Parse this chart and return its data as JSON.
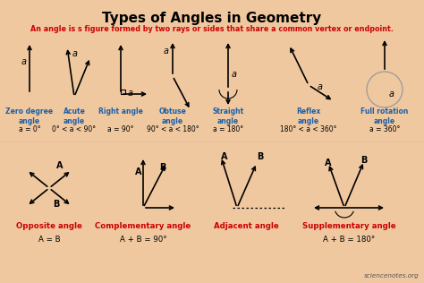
{
  "title": "Types of Angles in Geometry",
  "subtitle": "An angle is s figure formed by two rays or sides that share a common vertex or endpoint.",
  "bg_color": "#f0c8a0",
  "title_color": "#000000",
  "subtitle_color": "#cc0000",
  "label_color": "#1a5fa8",
  "formula_color": "#000000",
  "arrow_color": "#000000",
  "watermark": "sciencenotes.org",
  "row1_labels": [
    "Zero degree\nangle",
    "Acute\nangle",
    "Right angle",
    "Obtuse\nangle",
    "Straight\nangle",
    "Reflex\nangle",
    "Full rotation\nangle"
  ],
  "row1_formulas": [
    "a = 0°",
    "0° < a < 90°",
    "a = 90°",
    "90° < a < 180°",
    "a = 180°",
    "180° < a < 360°",
    "a = 360°"
  ],
  "row2_labels": [
    "Opposite angle",
    "Complementary angle",
    "Adjacent angle",
    "Supplementary angle"
  ],
  "row2_formulas": [
    "A = B",
    "A + B = 90°",
    "",
    "A + B = 180°"
  ]
}
